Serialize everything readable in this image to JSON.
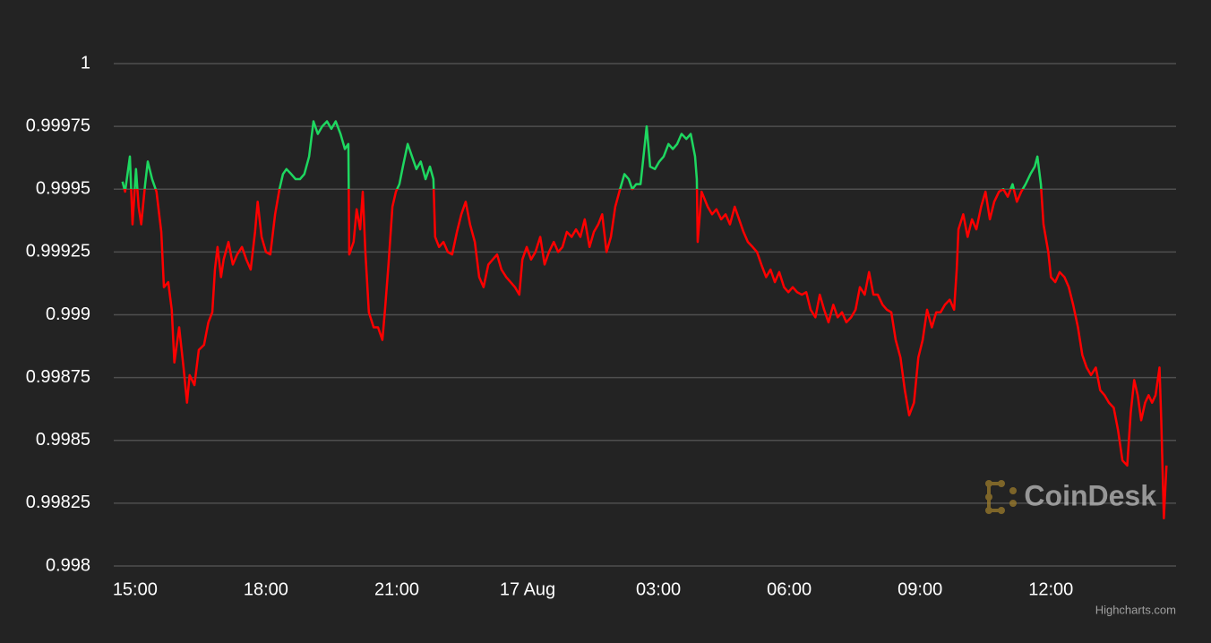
{
  "chart_data": {
    "type": "line",
    "credits": "Highcharts.com",
    "watermark": "CoinDesk",
    "threshold": 0.9995,
    "color": "#1ed760",
    "negative_color": "#ff0000",
    "grid": true,
    "xlim": [
      -0.49,
      23.87
    ],
    "xticks": [
      {
        "value": 0,
        "label": "15:00"
      },
      {
        "value": 3,
        "label": "18:00"
      },
      {
        "value": 6,
        "label": "21:00"
      },
      {
        "value": 9,
        "label": "17 Aug"
      },
      {
        "value": 12,
        "label": "03:00"
      },
      {
        "value": 15,
        "label": "06:00"
      },
      {
        "value": 18,
        "label": "09:00"
      },
      {
        "value": 21,
        "label": "12:00"
      }
    ],
    "ylim": [
      0.998,
      1
    ],
    "yticks": [
      0.998,
      0.99825,
      0.9985,
      0.99875,
      0.999,
      0.99925,
      0.9995,
      0.99975,
      1
    ],
    "x": [
      -0.29,
      -0.23,
      -0.12,
      -0.06,
      0.02,
      0.08,
      0.14,
      0.23,
      0.29,
      0.39,
      0.49,
      0.6,
      0.66,
      0.76,
      0.84,
      0.9,
      1.01,
      1.11,
      1.19,
      1.25,
      1.36,
      1.46,
      1.58,
      1.68,
      1.77,
      1.83,
      1.89,
      1.97,
      2.03,
      2.14,
      2.24,
      2.34,
      2.45,
      2.55,
      2.65,
      2.75,
      2.81,
      2.9,
      3,
      3.1,
      3.21,
      3.31,
      3.39,
      3.47,
      3.58,
      3.68,
      3.78,
      3.88,
      3.99,
      4.09,
      4.19,
      4.29,
      4.4,
      4.5,
      4.6,
      4.71,
      4.81,
      4.89,
      4.91,
      5.01,
      5.08,
      5.16,
      5.22,
      5.28,
      5.36,
      5.47,
      5.57,
      5.67,
      5.73,
      5.81,
      5.9,
      5.98,
      6.06,
      6.14,
      6.25,
      6.35,
      6.45,
      6.55,
      6.66,
      6.76,
      6.84,
      6.88,
      6.97,
      7.07,
      7.17,
      7.27,
      7.38,
      7.48,
      7.58,
      7.68,
      7.79,
      7.89,
      7.99,
      8.1,
      8.2,
      8.3,
      8.4,
      8.51,
      8.61,
      8.71,
      8.81,
      8.88,
      8.98,
      9.08,
      9.18,
      9.29,
      9.39,
      9.49,
      9.6,
      9.7,
      9.8,
      9.9,
      10.01,
      10.11,
      10.21,
      10.31,
      10.42,
      10.52,
      10.62,
      10.71,
      10.81,
      10.91,
      11.01,
      11.12,
      11.22,
      11.32,
      11.4,
      11.49,
      11.59,
      11.67,
      11.73,
      11.81,
      11.92,
      12.02,
      12.12,
      12.23,
      12.33,
      12.43,
      12.53,
      12.64,
      12.74,
      12.84,
      12.88,
      12.9,
      12.99,
      13.13,
      13.23,
      13.33,
      13.44,
      13.54,
      13.64,
      13.75,
      13.85,
      13.95,
      14.05,
      14.16,
      14.26,
      14.36,
      14.47,
      14.57,
      14.67,
      14.77,
      14.88,
      14.98,
      15.08,
      15.18,
      15.29,
      15.39,
      15.49,
      15.6,
      15.7,
      15.8,
      15.9,
      16.01,
      16.11,
      16.21,
      16.31,
      16.42,
      16.52,
      16.62,
      16.73,
      16.83,
      16.93,
      17.03,
      17.14,
      17.24,
      17.34,
      17.44,
      17.55,
      17.65,
      17.75,
      17.86,
      17.96,
      18.06,
      18.16,
      18.27,
      18.37,
      18.47,
      18.57,
      18.68,
      18.78,
      18.84,
      18.88,
      18.99,
      19.09,
      19.19,
      19.29,
      19.4,
      19.5,
      19.6,
      19.7,
      19.81,
      19.91,
      20.01,
      20.12,
      20.22,
      20.32,
      20.42,
      20.53,
      20.63,
      20.69,
      20.77,
      20.83,
      20.94,
      21,
      21.1,
      21.2,
      21.31,
      21.41,
      21.51,
      21.62,
      21.72,
      21.82,
      21.92,
      22.03,
      22.13,
      22.23,
      22.33,
      22.44,
      22.54,
      22.64,
      22.75,
      22.83,
      22.91,
      22.99,
      23.07,
      23.16,
      23.24,
      23.32,
      23.4,
      23.49,
      23.53,
      23.59,
      23.65
    ],
    "values": [
      0.99953,
      0.99949,
      0.99963,
      0.99936,
      0.99958,
      0.99943,
      0.99936,
      0.99952,
      0.99961,
      0.99954,
      0.99949,
      0.99933,
      0.99911,
      0.99913,
      0.99902,
      0.99881,
      0.99895,
      0.99879,
      0.99865,
      0.99876,
      0.99872,
      0.99886,
      0.99888,
      0.99897,
      0.99901,
      0.99918,
      0.99927,
      0.99915,
      0.99922,
      0.99929,
      0.9992,
      0.99924,
      0.99927,
      0.99922,
      0.99918,
      0.99933,
      0.99945,
      0.99931,
      0.99925,
      0.99924,
      0.9994,
      0.9995,
      0.99956,
      0.99958,
      0.99956,
      0.99954,
      0.99954,
      0.99956,
      0.99963,
      0.99977,
      0.99972,
      0.99975,
      0.99977,
      0.99974,
      0.99977,
      0.99972,
      0.99966,
      0.99968,
      0.99924,
      0.99929,
      0.99942,
      0.99934,
      0.99949,
      0.99925,
      0.99901,
      0.99895,
      0.99895,
      0.9989,
      0.99902,
      0.9992,
      0.99943,
      0.99949,
      0.99952,
      0.99959,
      0.99968,
      0.99963,
      0.99958,
      0.99961,
      0.99954,
      0.99959,
      0.99954,
      0.99931,
      0.99927,
      0.99929,
      0.99925,
      0.99924,
      0.99933,
      0.9994,
      0.99945,
      0.99936,
      0.99929,
      0.99915,
      0.99911,
      0.9992,
      0.99922,
      0.99924,
      0.99918,
      0.99915,
      0.99913,
      0.99911,
      0.99908,
      0.99922,
      0.99927,
      0.99922,
      0.99925,
      0.99931,
      0.9992,
      0.99925,
      0.99929,
      0.99925,
      0.99927,
      0.99933,
      0.99931,
      0.99934,
      0.99931,
      0.99938,
      0.99927,
      0.99933,
      0.99936,
      0.9994,
      0.99925,
      0.99931,
      0.99943,
      0.9995,
      0.99956,
      0.99954,
      0.9995,
      0.99952,
      0.99952,
      0.99965,
      0.99975,
      0.99959,
      0.99958,
      0.99961,
      0.99963,
      0.99968,
      0.99966,
      0.99968,
      0.99972,
      0.9997,
      0.99972,
      0.99963,
      0.99954,
      0.99929,
      0.99949,
      0.99943,
      0.9994,
      0.99942,
      0.99938,
      0.9994,
      0.99936,
      0.99943,
      0.99938,
      0.99933,
      0.99929,
      0.99927,
      0.99925,
      0.9992,
      0.99915,
      0.99918,
      0.99913,
      0.99917,
      0.99911,
      0.99909,
      0.99911,
      0.99909,
      0.99908,
      0.99909,
      0.99902,
      0.99899,
      0.99908,
      0.99902,
      0.99897,
      0.99904,
      0.99899,
      0.99901,
      0.99897,
      0.99899,
      0.99902,
      0.99911,
      0.99908,
      0.99917,
      0.99908,
      0.99908,
      0.99904,
      0.99902,
      0.99901,
      0.9989,
      0.99883,
      0.9987,
      0.9986,
      0.99865,
      0.99883,
      0.9989,
      0.99902,
      0.99895,
      0.99901,
      0.99901,
      0.99904,
      0.99906,
      0.99902,
      0.99918,
      0.99934,
      0.9994,
      0.99931,
      0.99938,
      0.99934,
      0.99943,
      0.99949,
      0.99938,
      0.99945,
      0.99949,
      0.9995,
      0.99947,
      0.99952,
      0.99945,
      0.99949,
      0.99952,
      0.99956,
      0.99959,
      0.99963,
      0.99952,
      0.99936,
      0.99925,
      0.99915,
      0.99913,
      0.99917,
      0.99915,
      0.99911,
      0.99904,
      0.99895,
      0.99884,
      0.99879,
      0.99876,
      0.99879,
      0.9987,
      0.99868,
      0.99865,
      0.99863,
      0.99854,
      0.99842,
      0.9984,
      0.99861,
      0.99874,
      0.99868,
      0.99858,
      0.99865,
      0.99868,
      0.99865,
      0.99868,
      0.99879,
      0.99858,
      0.99819,
      0.9984
    ]
  }
}
